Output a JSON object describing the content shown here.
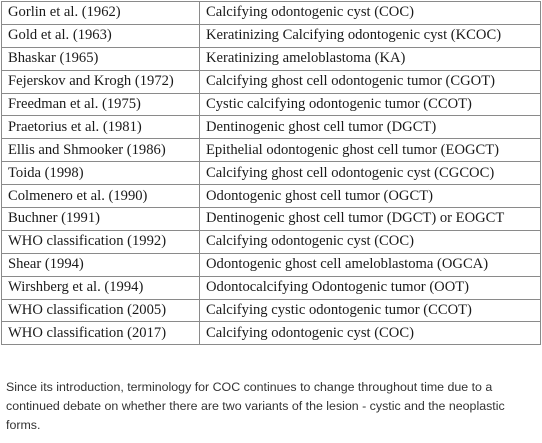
{
  "table": {
    "rows": [
      {
        "source": "Gorlin et al. (1962)",
        "term": "Calcifying odontogenic cyst (COC)"
      },
      {
        "source": "Gold et al. (1963)",
        "term": "Keratinizing Calcifying odontogenic cyst (KCOC)"
      },
      {
        "source": "Bhaskar (1965)",
        "term": "Keratinizing ameloblastoma (KA)"
      },
      {
        "source": "Fejerskov and Krogh (1972)",
        "term": "Calcifying ghost cell odontogenic tumor (CGOT)"
      },
      {
        "source": "Freedman et al. (1975)",
        "term": "Cystic calcifying odontogenic tumor (CCOT)"
      },
      {
        "source": "Praetorius et al. (1981)",
        "term": "Dentinogenic ghost cell tumor (DGCT)"
      },
      {
        "source": "Ellis and Shmooker (1986)",
        "term": "Epithelial odontogenic ghost cell tumor (EOGCT)"
      },
      {
        "source": "Toida (1998)",
        "term": "Calcifying ghost cell odontogenic cyst (CGCOC)"
      },
      {
        "source": "Colmenero et al. (1990)",
        "term": "Odontogenic ghost cell tumor (OGCT)"
      },
      {
        "source": "Buchner (1991)",
        "term": "Dentinogenic ghost cell tumor (DGCT) or EOGCT"
      },
      {
        "source": "WHO classification (1992)",
        "term": "Calcifying odontogenic cyst (COC)"
      },
      {
        "source": "Shear (1994)",
        "term": "Odontogenic ghost cell ameloblastoma (OGCA)"
      },
      {
        "source": "Wirshberg et al. (1994)",
        "term": "Odontocalcifying Odontogenic tumor (OOT)"
      },
      {
        "source": "WHO classification (2005)",
        "term": "Calcifying cystic odontogenic tumor (CCOT)"
      },
      {
        "source": "WHO classification (2017)",
        "term": "Calcifying odontogenic cyst (COC)"
      }
    ]
  },
  "footnote": "Since its introduction, terminology for COC continues to change throughout time due to a continued debate on whether there are two variants of the lesion - cystic and the neoplastic forms."
}
